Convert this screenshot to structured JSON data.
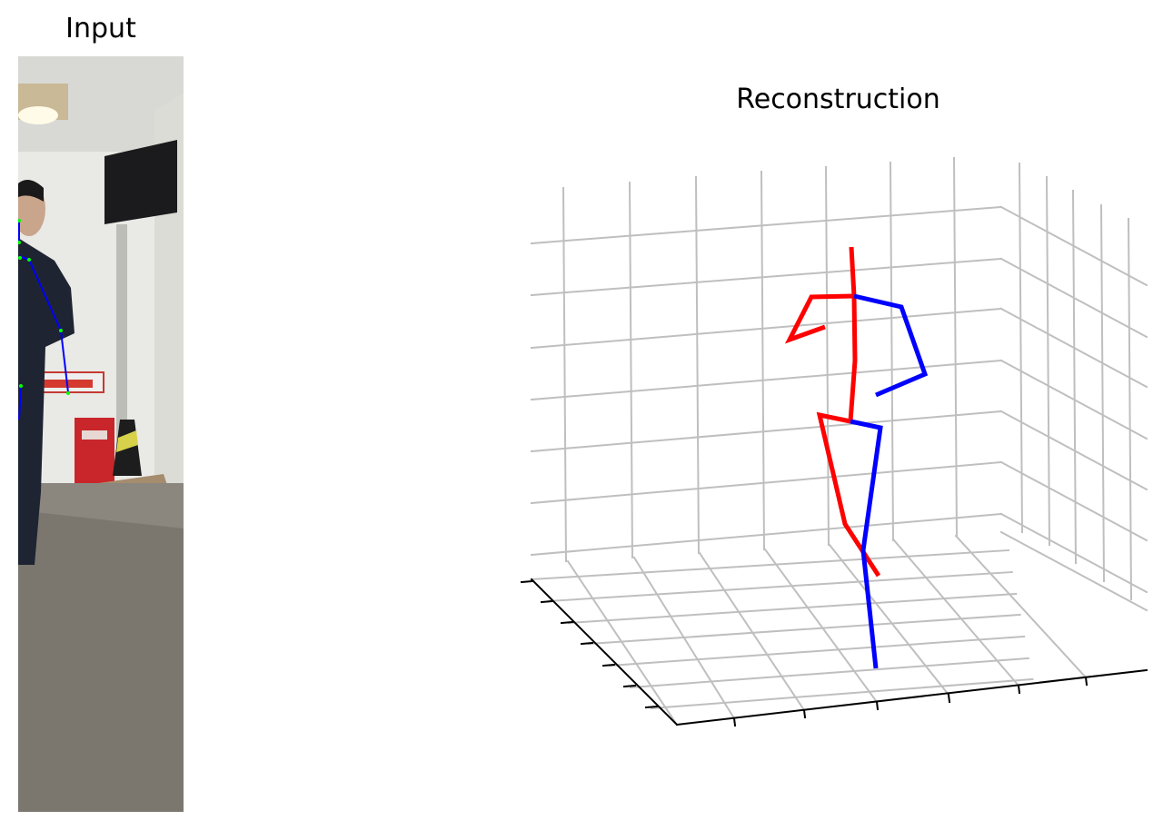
{
  "input_panel": {
    "title": "Input",
    "keypoint_color": "#00ff00",
    "bone_color": "#0000ff"
  },
  "reconstruction_panel": {
    "title": "Reconstruction",
    "colors": {
      "left_side": "#0000ff",
      "right_side": "#ff0000",
      "grid": "#bfbfbf",
      "axis": "#000000"
    }
  }
}
